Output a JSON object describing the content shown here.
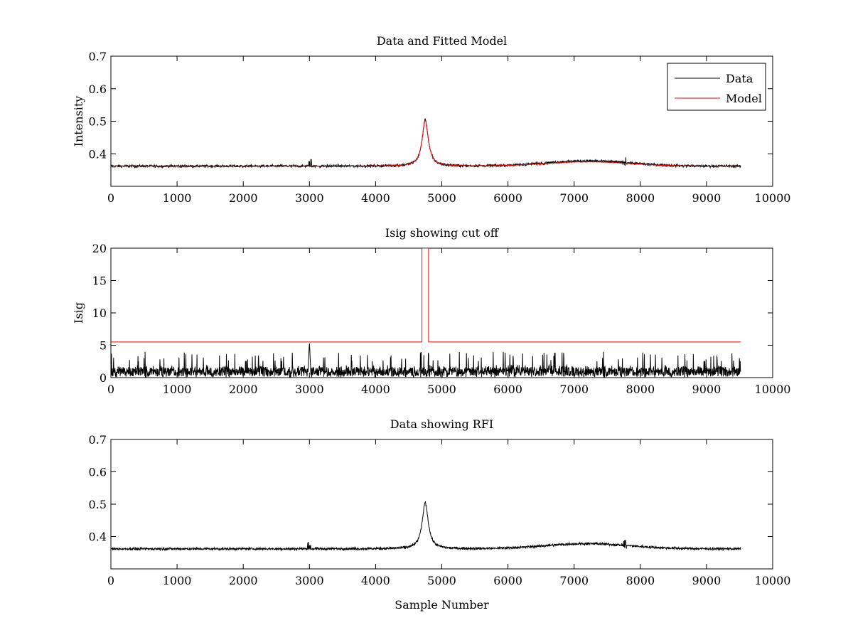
{
  "chart_data": [
    {
      "type": "line",
      "title": "Data and Fitted Model",
      "xlabel": "",
      "ylabel": "Intensity",
      "xlim": [
        0,
        10000
      ],
      "ylim": [
        0.3,
        0.7
      ],
      "xticks": [
        0,
        1000,
        2000,
        3000,
        4000,
        5000,
        6000,
        7000,
        8000,
        9000,
        10000
      ],
      "yticks": [
        0.4,
        0.5,
        0.6,
        0.7
      ],
      "legend": {
        "placement": "top-right",
        "entries": [
          "Data",
          "Model"
        ]
      },
      "series": [
        {
          "name": "Data",
          "color": "#000000",
          "x_range": [
            1,
            9520
          ],
          "baseline": 0.362,
          "noise_amplitude": 0.004,
          "features": [
            {
              "shape": "spike",
              "x": 3000,
              "peak": 0.385
            },
            {
              "shape": "lorentzian",
              "x": 4750,
              "peak": 0.505,
              "halfwidth": 55
            },
            {
              "shape": "broad_bump",
              "x": 7200,
              "peak": 0.378
            },
            {
              "shape": "spike",
              "x": 7760,
              "peak": 0.39
            }
          ]
        },
        {
          "name": "Model",
          "color": "#ff0000",
          "x_range": [
            1,
            9520
          ],
          "baseline": 0.362,
          "features": [
            {
              "shape": "lorentzian",
              "x": 4750,
              "peak": 0.505,
              "halfwidth": 55
            },
            {
              "shape": "broad_bump",
              "x": 7200,
              "peak": 0.375
            }
          ]
        }
      ]
    },
    {
      "type": "line",
      "title": "Isig showing cut off",
      "xlabel": "",
      "ylabel": "Isig",
      "xlim": [
        0,
        10000
      ],
      "ylim": [
        0,
        20
      ],
      "xticks": [
        0,
        1000,
        2000,
        3000,
        4000,
        5000,
        6000,
        7000,
        8000,
        9000,
        10000
      ],
      "yticks": [
        0,
        5,
        10,
        15,
        20
      ],
      "series": [
        {
          "color": "#000000",
          "x_range": [
            1,
            9520
          ],
          "typical_max": 2.5,
          "occasional_max": 4,
          "features": [
            {
              "shape": "spike",
              "x": 3000,
              "peak": 5.5
            }
          ]
        },
        {
          "color": "#ff0000",
          "x": [
            0,
            4700,
            4700,
            4800,
            4800,
            9520
          ],
          "y": [
            5.5,
            5.5,
            20,
            20,
            5.5,
            5.5
          ]
        }
      ]
    },
    {
      "type": "line",
      "title": "Data showing RFI",
      "xlabel": "Sample Number",
      "ylabel": "",
      "xlim": [
        0,
        10000
      ],
      "ylim": [
        0.3,
        0.7
      ],
      "xticks": [
        0,
        1000,
        2000,
        3000,
        4000,
        5000,
        6000,
        7000,
        8000,
        9000,
        10000
      ],
      "yticks": [
        0.4,
        0.5,
        0.6,
        0.7
      ],
      "series": [
        {
          "color": "#000000",
          "x_range": [
            1,
            9520
          ],
          "baseline": 0.362,
          "noise_amplitude": 0.004,
          "features": [
            {
              "shape": "spike",
              "x": 3000,
              "peak": 0.385
            },
            {
              "shape": "lorentzian",
              "x": 4750,
              "peak": 0.505,
              "halfwidth": 55
            },
            {
              "shape": "broad_bump",
              "x": 7200,
              "peak": 0.378
            },
            {
              "shape": "spike",
              "x": 7760,
              "peak": 0.39
            }
          ]
        }
      ]
    }
  ]
}
